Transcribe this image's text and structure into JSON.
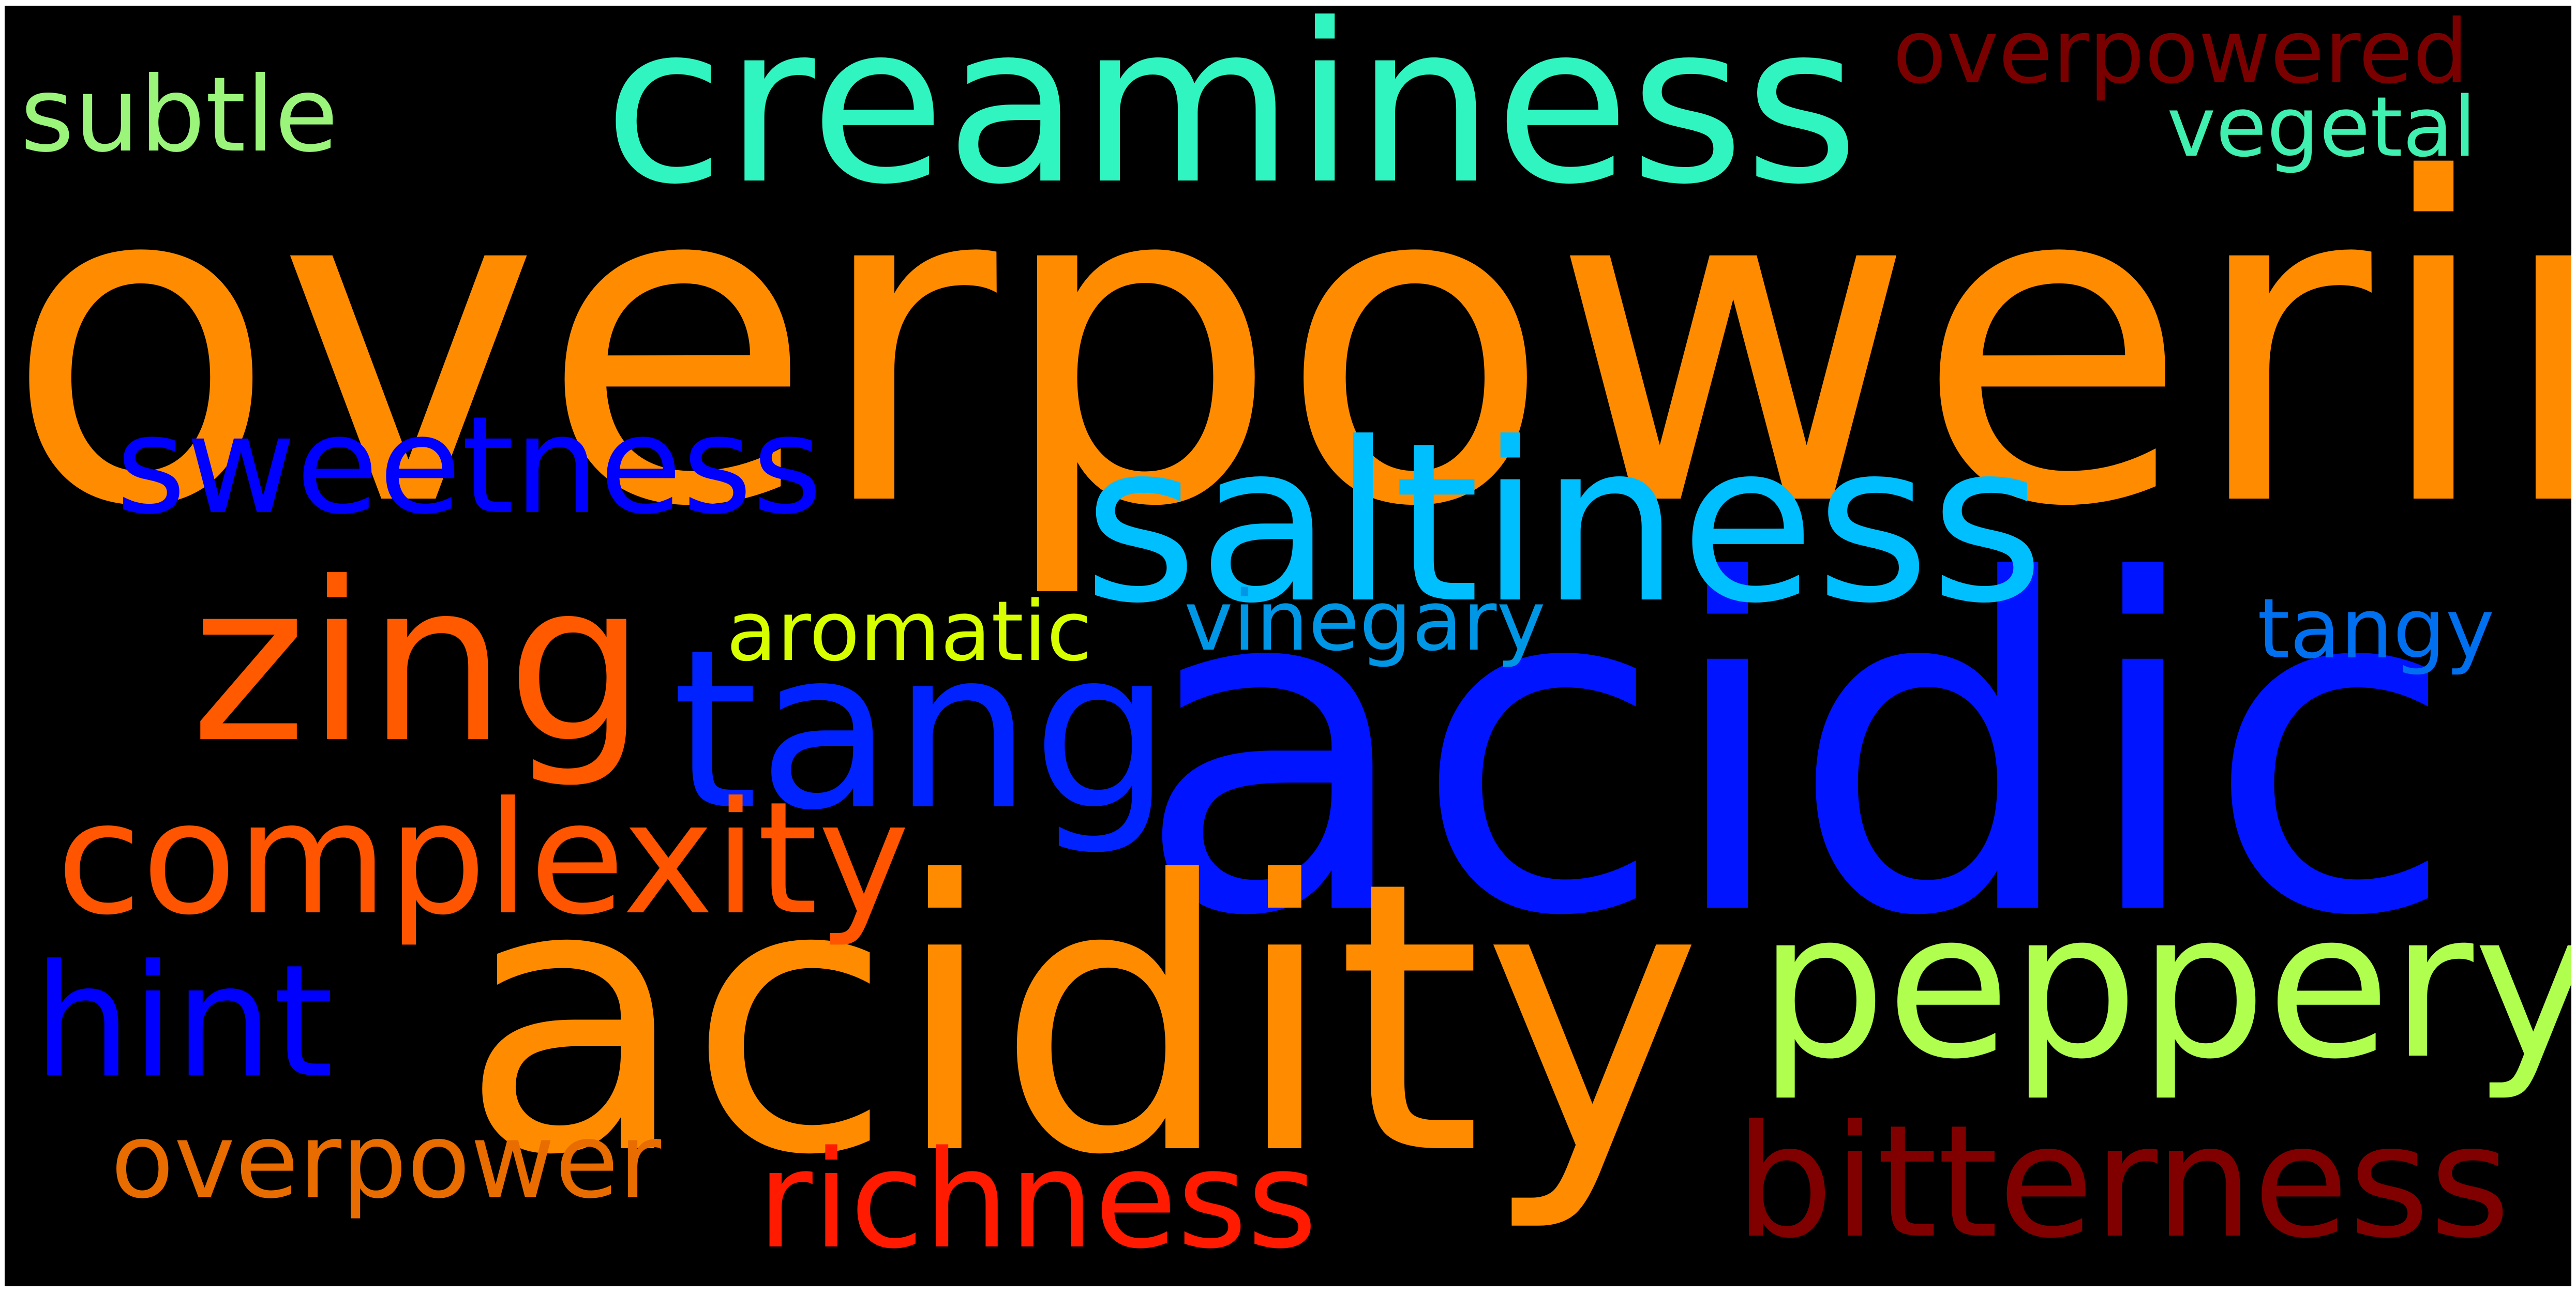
{
  "words": [
    {
      "text": "overpowering",
      "color": "#ff8c00"
    },
    {
      "text": "acidic",
      "color": "#0014ff"
    },
    {
      "text": "acidity",
      "color": "#ff8c00"
    },
    {
      "text": "creaminess",
      "color": "#30f5c0"
    },
    {
      "text": "saltiness",
      "color": "#00bfff"
    },
    {
      "text": "zing",
      "color": "#ff5a00"
    },
    {
      "text": "tang",
      "color": "#0022ff"
    },
    {
      "text": "peppery",
      "color": "#b0ff4f"
    },
    {
      "text": "sweetness",
      "color": "#0000ff"
    },
    {
      "text": "complexity",
      "color": "#ff5400"
    },
    {
      "text": "bitterness",
      "color": "#800000"
    },
    {
      "text": "hint",
      "color": "#0000ff"
    },
    {
      "text": "richness",
      "color": "#ff1a00"
    },
    {
      "text": "overpower",
      "color": "#e86c00"
    },
    {
      "text": "subtle",
      "color": "#9af57a"
    },
    {
      "text": "overpowered",
      "color": "#7a0000"
    },
    {
      "text": "vegetal",
      "color": "#40f0b0"
    },
    {
      "text": "aromatic",
      "color": "#d8ff00"
    },
    {
      "text": "vinegary",
      "color": "#0096e6"
    },
    {
      "text": "tangy",
      "color": "#0070f0"
    }
  ]
}
